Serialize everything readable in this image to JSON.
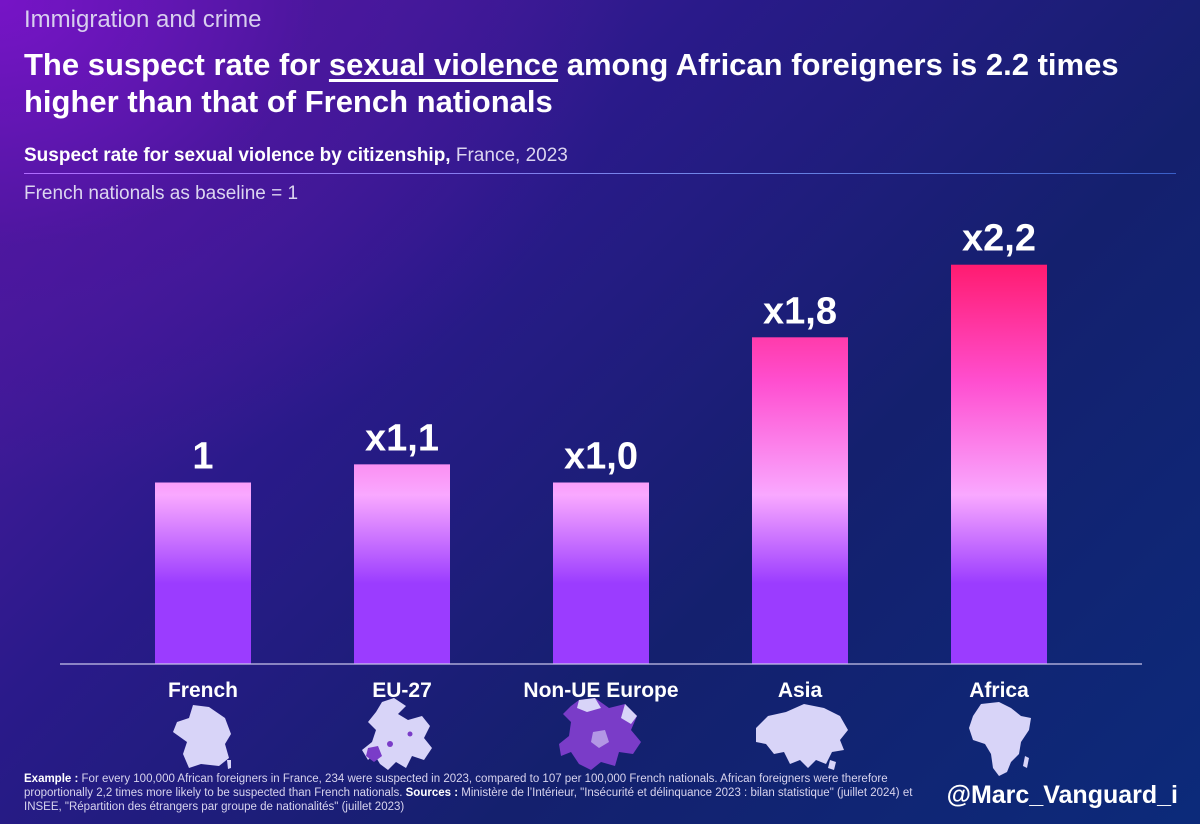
{
  "header": {
    "kicker": "Immigration and crime",
    "headline_before": "The suspect rate for ",
    "headline_highlight": "sexual violence",
    "headline_after": " among African foreigners is 2.2 times higher than that of French nationals",
    "subtitle_strong": "Suspect rate for sexual violence by citizenship,",
    "subtitle_light": " France, 2023",
    "baseline_note": "French nationals as baseline = 1"
  },
  "colors": {
    "bar_top_hot": "#ff1a6e",
    "bar_mid_pink": "#ff4fd0",
    "bar_light_pink": "#f9a8ff",
    "bar_purple": "#9b3cff",
    "axis": "#c8c4ea",
    "map_fill": "#d8d4f8",
    "map_highlight": "#7a3cc8"
  },
  "chart_data": {
    "type": "bar",
    "title": "Suspect rate for sexual violence by citizenship, France, 2023",
    "xlabel": "",
    "ylabel": "French nationals as baseline = 1",
    "ylim": [
      0,
      2.5
    ],
    "grid": false,
    "categories": [
      "French",
      "EU-27",
      "Non-UE Europe",
      "Asia",
      "Africa"
    ],
    "values": [
      1.0,
      1.1,
      1.0,
      1.8,
      2.2
    ],
    "labels": [
      "1",
      "x1,1",
      "x1,0",
      "x1,8",
      "x2,2"
    ],
    "icons": [
      "france-map-icon",
      "eu-map-icon",
      "europe-map-icon",
      "asia-map-icon",
      "africa-map-icon"
    ]
  },
  "footer": {
    "example_label": "Example :",
    "example_text": " For every 100,000 African foreigners in France, 234 were suspected in 2023, compared to 107 per 100,000 French nationals. African foreigners were therefore proportionally 2,2 times more likely to be suspected than French nationals. ",
    "sources_label": "Sources :",
    "sources_text": " Ministère de l’Intérieur, \"Insécurité et délinquance 2023 : bilan statistique\" (juillet 2024) et INSEE, \"Répartition des étrangers par groupe de nationalités\" (juillet 2023)",
    "handle": "@Marc_Vanguard_i"
  }
}
